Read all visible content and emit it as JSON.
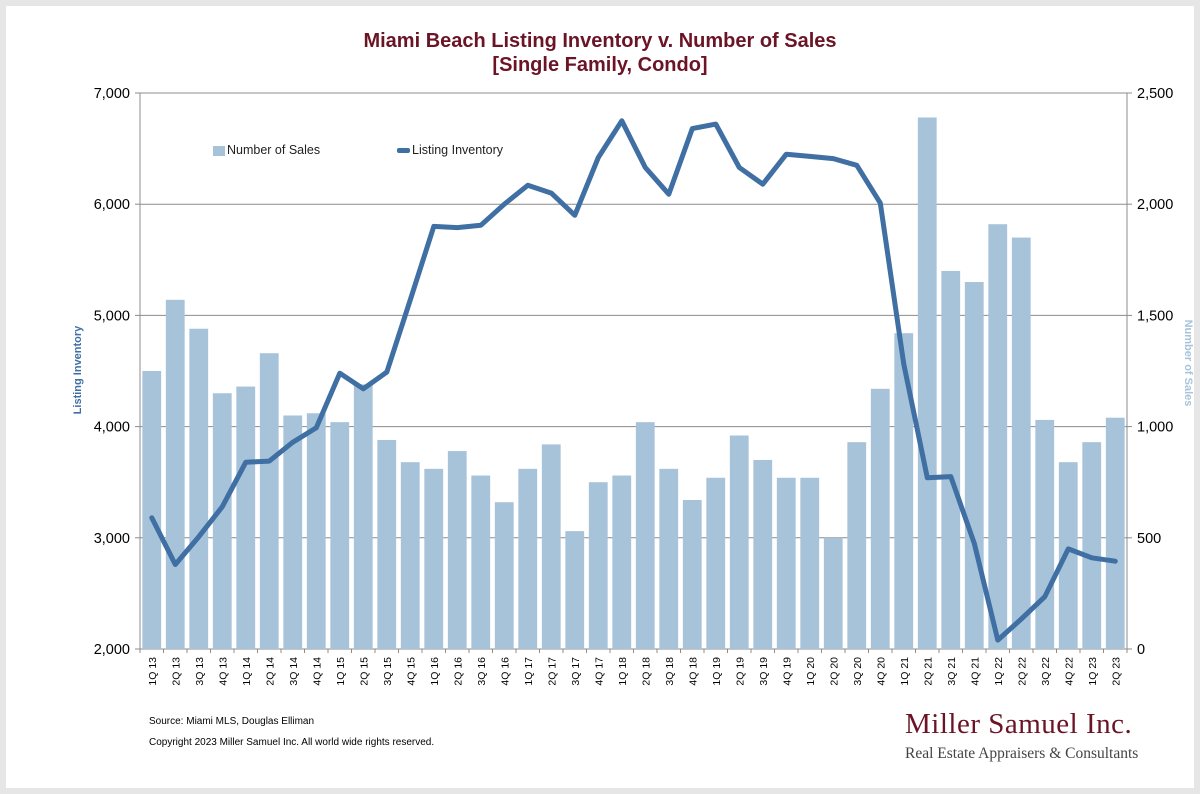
{
  "chart_data": {
    "type": "bar+line",
    "title": "Miami Beach Listing Inventory v. Number of Sales",
    "subtitle": "[Single Family, Condo]",
    "categories": [
      "1Q 13",
      "2Q 13",
      "3Q 13",
      "4Q 13",
      "1Q 14",
      "2Q 14",
      "3Q 14",
      "4Q 14",
      "1Q 15",
      "2Q 15",
      "3Q 15",
      "4Q 15",
      "1Q 16",
      "2Q 16",
      "3Q 16",
      "4Q 16",
      "1Q 17",
      "2Q 17",
      "3Q 17",
      "4Q 17",
      "1Q 18",
      "2Q 18",
      "3Q 18",
      "4Q 18",
      "1Q 19",
      "2Q 19",
      "3Q 19",
      "4Q 19",
      "1Q 20",
      "2Q 20",
      "3Q 20",
      "4Q 20",
      "1Q 21",
      "2Q 21",
      "3Q 21",
      "4Q 21",
      "1Q 22",
      "2Q 22",
      "3Q 22",
      "4Q 22",
      "1Q 23",
      "2Q 23"
    ],
    "series": [
      {
        "name": "Number of Sales",
        "type": "bar",
        "axis": "right",
        "color": "#a7c3da",
        "values": [
          1250,
          1570,
          1440,
          1150,
          1180,
          1330,
          1050,
          1060,
          1020,
          1190,
          940,
          840,
          810,
          890,
          780,
          660,
          810,
          920,
          530,
          750,
          780,
          1020,
          810,
          670,
          770,
          960,
          850,
          770,
          770,
          500,
          930,
          1170,
          1420,
          2390,
          1700,
          1650,
          1910,
          1850,
          1030,
          840,
          930,
          1040
        ]
      },
      {
        "name": "Listing Inventory",
        "type": "line",
        "axis": "left",
        "color": "#3f6fa3",
        "values": [
          3180,
          2760,
          3010,
          3280,
          3680,
          3690,
          3860,
          3990,
          4480,
          4340,
          4490,
          5140,
          5800,
          5790,
          5810,
          6000,
          6170,
          6100,
          5900,
          6420,
          6750,
          6330,
          6090,
          6680,
          6720,
          6330,
          6180,
          6450,
          6430,
          6410,
          6350,
          6010,
          4560,
          3540,
          3550,
          2950,
          2080,
          2270,
          2470,
          2900,
          2820,
          2790
        ]
      }
    ],
    "ylabel": "Listing Inventory",
    "y2label": "Number of Sales",
    "ylim": [
      2000,
      7000
    ],
    "y2lim": [
      0,
      2500
    ],
    "yticks": [
      "2,000",
      "3,000",
      "4,000",
      "5,000",
      "6,000",
      "7,000"
    ],
    "y2ticks": [
      "0",
      "500",
      "1,000",
      "1,500",
      "2,000",
      "2,500"
    ],
    "grid": true,
    "legend": "top-left"
  },
  "footer": {
    "source": "Source: Miami MLS, Douglas Elliman",
    "copyright": "Copyright 2023 Miller Samuel Inc.  All world wide rights reserved.",
    "brand": "Miller Samuel Inc.",
    "tagline": "Real Estate Appraisers & Consultants"
  }
}
